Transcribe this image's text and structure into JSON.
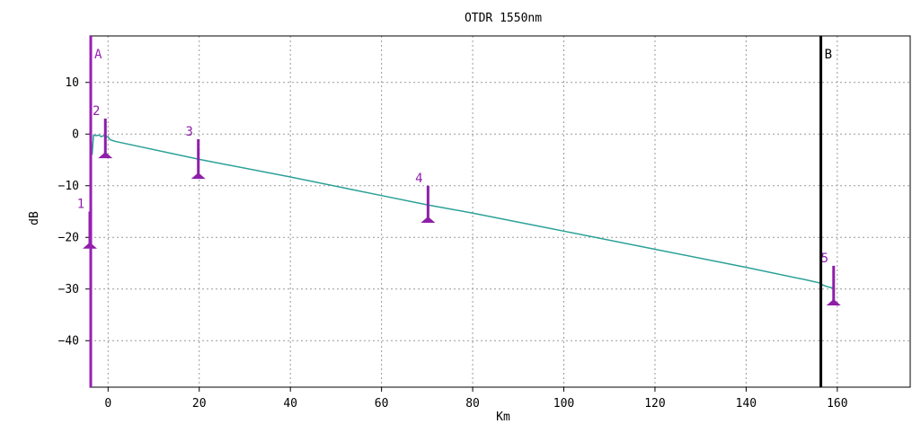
{
  "chart_data": {
    "type": "line",
    "title": "OTDR 1550nm",
    "xlabel": "Km",
    "ylabel": "dB",
    "xlim": [
      -4,
      176
    ],
    "ylim": [
      -49,
      19
    ],
    "x_ticks": [
      0,
      20,
      40,
      60,
      80,
      100,
      120,
      140,
      160
    ],
    "y_ticks": [
      10,
      0,
      -10,
      -20,
      -30,
      -40
    ],
    "grid": true,
    "trace": {
      "color": "#2aa198",
      "points": [
        [
          -3.5,
          -4
        ],
        [
          -3.2,
          -0.2
        ],
        [
          -2.6,
          -0.3
        ],
        [
          -2.0,
          -0.2
        ],
        [
          -1.5,
          -0.5
        ],
        [
          -1.0,
          -0.3
        ],
        [
          0.0,
          -0.6
        ],
        [
          0.5,
          -1.1
        ],
        [
          1.5,
          -1.4
        ],
        [
          20,
          -4.9
        ],
        [
          40,
          -8.3
        ],
        [
          60,
          -11.9
        ],
        [
          70,
          -13.7
        ],
        [
          80,
          -15.3
        ],
        [
          100,
          -18.8
        ],
        [
          120,
          -22.3
        ],
        [
          140,
          -25.8
        ],
        [
          153,
          -28.2
        ],
        [
          156,
          -28.8
        ],
        [
          157,
          -29.3
        ],
        [
          158,
          -29.6
        ],
        [
          159,
          -29.8
        ]
      ]
    },
    "events": [
      {
        "label": "1",
        "x": -4.0,
        "y_top": -15,
        "y_bottom": -22
      },
      {
        "label": "2",
        "x": -0.6,
        "y_top": 3,
        "y_bottom": -4.5
      },
      {
        "label": "3",
        "x": 19.8,
        "y_top": -1,
        "y_bottom": -8.5
      },
      {
        "label": "4",
        "x": 70.2,
        "y_top": -10,
        "y_bottom": -17
      },
      {
        "label": "5",
        "x": 159.2,
        "y_top": -25.5,
        "y_bottom": -33
      }
    ],
    "cursors": [
      {
        "label": "A",
        "x": -3.8,
        "color": "#9a1fb5"
      },
      {
        "label": "B",
        "x": 156.4,
        "color": "#000000"
      }
    ],
    "event_color": "#8e1ea8"
  }
}
